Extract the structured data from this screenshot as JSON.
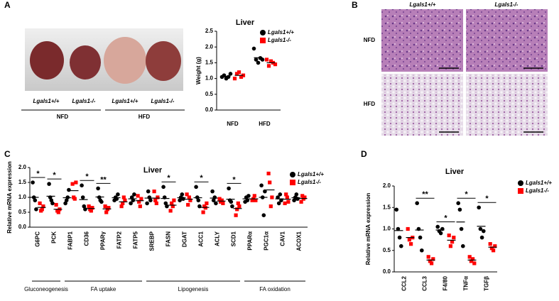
{
  "panel_labels": [
    "A",
    "B",
    "C",
    "D"
  ],
  "photo": {
    "genotype_labels": [
      "Lgals1+/+",
      "Lgals1-/-",
      "Lgals1+/+",
      "Lgals1-/-"
    ],
    "diet_labels": [
      "NFD",
      "HFD"
    ]
  },
  "histology": {
    "genotype_labels": [
      "Lgals1+/+",
      "Lgals1-/-"
    ],
    "diet_labels": [
      "NFD",
      "HFD"
    ]
  },
  "chart_data": [
    {
      "type": "dot",
      "title": "Liver",
      "y_label": "Weight (g)",
      "categories": [
        "NFD",
        "HFD"
      ],
      "series": [
        {
          "name": "Lgals1+/+",
          "color": "#000000",
          "marker": "circle",
          "values": [
            [
              1.05,
              1.1,
              1.0,
              1.05,
              1.15
            ],
            [
              1.95,
              1.6,
              1.5,
              1.65,
              1.6
            ]
          ]
        },
        {
          "name": "Lgals1-/-",
          "color": "#ff0000",
          "marker": "square",
          "values": [
            [
              1.0,
              1.15,
              1.2,
              1.05,
              1.1
            ],
            [
              1.6,
              1.4,
              1.55,
              1.5,
              1.45
            ]
          ]
        }
      ],
      "ylim": [
        0,
        2.5
      ],
      "yticks": [
        {
          "value": 0,
          "label": "0.0"
        },
        0.5,
        {
          "value": 1,
          "label": "1.0"
        },
        1.5,
        {
          "value": 2,
          "label": "2.0"
        },
        2.5
      ],
      "legend": "upper right"
    },
    {
      "type": "dot",
      "title": "Liver",
      "y_label": "Relative mRNA expression",
      "categories": [
        "G6PC",
        "PCK",
        "FABP1",
        "CD36",
        "PPARγ",
        "FATP2",
        "FATP5",
        "SREBP",
        "FASN",
        "DGAT",
        "ACC1",
        "ACLY",
        "SCD1",
        "PPARα",
        "PGC1α",
        "CAV1",
        "ACOX1"
      ],
      "x_groups": [
        "Gluconeogenesis",
        "Gluconeogenesis",
        "FA uptake",
        "FA uptake",
        "FA uptake",
        "FA uptake",
        "FA uptake",
        "Lipogenesis",
        "Lipogenesis",
        "Lipogenesis",
        "Lipogenesis",
        "Lipogenesis",
        "Lipogenesis",
        "FA oxidation",
        "FA oxidation",
        "FA oxidation",
        "FA oxidation"
      ],
      "significance": [
        "*",
        "*",
        null,
        "*",
        "**",
        null,
        null,
        null,
        "*",
        null,
        "*",
        null,
        "*",
        null,
        null,
        null,
        null
      ],
      "series": [
        {
          "name": "Lgals1+/+",
          "color": "#000000",
          "marker": "circle",
          "values": [
            [
              1.5,
              1.0,
              0.9,
              0.6
            ],
            [
              1.45,
              1.0,
              0.9,
              0.8
            ],
            [
              0.8,
              0.9,
              1.0,
              1.25
            ],
            [
              1.4,
              1.0,
              0.7,
              0.6
            ],
            [
              1.3,
              1.0,
              0.9,
              0.85
            ],
            [
              0.9,
              1.0,
              0.95,
              1.1
            ],
            [
              0.8,
              1.0,
              0.9,
              1.1
            ],
            [
              0.8,
              1.2,
              1.0,
              0.9
            ],
            [
              1.35,
              1.0,
              0.8,
              0.7
            ],
            [
              0.9,
              1.0,
              1.1,
              0.95
            ],
            [
              1.35,
              1.0,
              0.9,
              0.7
            ],
            [
              1.2,
              0.9,
              1.0,
              0.8
            ],
            [
              1.3,
              0.9,
              0.85,
              0.7
            ],
            [
              0.85,
              1.0,
              0.9,
              1.05
            ],
            [
              1.4,
              1.0,
              0.4,
              1.2
            ],
            [
              1.0,
              0.8,
              1.1,
              0.9
            ],
            [
              0.9,
              1.0,
              1.1,
              0.95
            ]
          ]
        },
        {
          "name": "Lgals1-/-",
          "color": "#ff0000",
          "marker": "square",
          "values": [
            [
              0.8,
              0.55,
              0.6,
              0.7
            ],
            [
              0.75,
              0.55,
              0.5,
              0.6
            ],
            [
              1.45,
              1.0,
              0.95,
              1.5
            ],
            [
              0.7,
              0.6,
              0.55,
              0.65
            ],
            [
              0.7,
              0.5,
              0.6,
              0.65
            ],
            [
              0.7,
              0.8,
              1.0,
              0.9
            ],
            [
              1.05,
              0.85,
              0.7,
              0.95
            ],
            [
              1.2,
              0.9,
              0.8,
              1.0
            ],
            [
              0.55,
              0.8,
              0.7,
              0.9
            ],
            [
              1.1,
              0.75,
              1.0,
              0.9
            ],
            [
              0.5,
              0.7,
              0.65,
              0.8
            ],
            [
              0.95,
              0.85,
              0.9,
              0.8
            ],
            [
              0.4,
              0.6,
              0.8,
              0.7
            ],
            [
              0.9,
              0.95,
              1.05,
              0.9
            ],
            [
              1.8,
              1.5,
              0.7,
              1.0
            ],
            [
              0.8,
              1.1,
              1.0,
              0.85
            ],
            [
              0.85,
              1.05,
              0.95,
              1.0
            ]
          ]
        }
      ],
      "ylim": [
        0,
        2
      ],
      "yticks": [
        {
          "value": 0,
          "label": "0.0"
        },
        0.5,
        {
          "value": 1,
          "label": "1.0"
        },
        1.5,
        {
          "value": 2,
          "label": "2.0"
        }
      ],
      "legend": "upper right"
    },
    {
      "type": "dot",
      "title": "Liver",
      "y_label": "Relative mRNA expression",
      "categories": [
        "CCL2",
        "CCL3",
        "F4/80",
        "TNFα",
        "TGFβ"
      ],
      "significance": [
        null,
        "**",
        "*",
        "*",
        "*"
      ],
      "series": [
        {
          "name": "Lgals1+/+",
          "color": "#000000",
          "marker": "circle",
          "values": [
            [
              1.45,
              1.0,
              0.8,
              0.6
            ],
            [
              1.6,
              1.0,
              0.8,
              0.5
            ],
            [
              1.05,
              0.95,
              0.9,
              1.0
            ],
            [
              1.6,
              1.45,
              1.0,
              0.6
            ],
            [
              1.5,
              1.0,
              0.8,
              0.95
            ]
          ]
        },
        {
          "name": "Lgals1-/-",
          "color": "#ff0000",
          "marker": "square",
          "values": [
            [
              1.0,
              0.75,
              0.65,
              0.8
            ],
            [
              0.35,
              0.25,
              0.2,
              0.3
            ],
            [
              0.85,
              0.6,
              0.7,
              0.8
            ],
            [
              0.35,
              0.25,
              0.3,
              0.2
            ],
            [
              0.65,
              0.55,
              0.5,
              0.6
            ]
          ]
        }
      ],
      "ylim": [
        0,
        2
      ],
      "yticks": [
        {
          "value": 0,
          "label": "0.0"
        },
        0.5,
        {
          "value": 1,
          "label": "1.0"
        },
        1.5,
        {
          "value": 2,
          "label": "2.0"
        }
      ],
      "legend": "upper right"
    }
  ]
}
